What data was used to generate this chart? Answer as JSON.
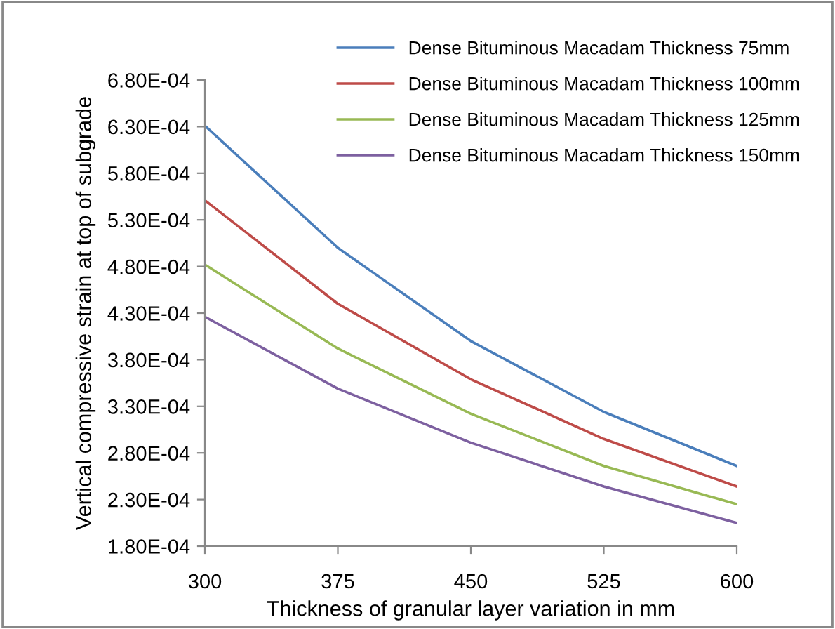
{
  "chart_data": {
    "type": "line",
    "xlabel": "Thickness of granular layer variation in mm",
    "ylabel": "Vertical compressive strain at top of subgrade",
    "x": [
      300,
      375,
      450,
      525,
      600
    ],
    "xlim": [
      300,
      600
    ],
    "xticks": [
      300,
      375,
      450,
      525,
      600
    ],
    "ylim": [
      0.00018,
      0.00068
    ],
    "yticks": [
      {
        "value": 0.00018,
        "label": "1.80E-04"
      },
      {
        "value": 0.00023,
        "label": "2.30E-04"
      },
      {
        "value": 0.00028,
        "label": "2.80E-04"
      },
      {
        "value": 0.00033,
        "label": "3.30E-04"
      },
      {
        "value": 0.00038,
        "label": "3.80E-04"
      },
      {
        "value": 0.00043,
        "label": "4.30E-04"
      },
      {
        "value": 0.00048,
        "label": "4.80E-04"
      },
      {
        "value": 0.00053,
        "label": "5.30E-04"
      },
      {
        "value": 0.00058,
        "label": "5.80E-04"
      },
      {
        "value": 0.00063,
        "label": "6.30E-04"
      },
      {
        "value": 0.00068,
        "label": "6.80E-04"
      }
    ],
    "grid": false,
    "legend": "top right",
    "marker": "none",
    "line_style": "solid",
    "series": [
      {
        "name": "Dense Bituminous Macadam Thickness 75mm",
        "color": "#4a7ebb",
        "values": [
          0.000631,
          0.0005,
          0.0004,
          0.000324,
          0.000266
        ]
      },
      {
        "name": "Dense Bituminous Macadam Thickness 100mm",
        "color": "#be4b48",
        "values": [
          0.000551,
          0.00044,
          0.000359,
          0.000295,
          0.000244
        ]
      },
      {
        "name": "Dense Bituminous Macadam Thickness 125mm",
        "color": "#98b954",
        "values": [
          0.000482,
          0.000392,
          0.000322,
          0.000266,
          0.000225
        ]
      },
      {
        "name": "Dense Bituminous Macadam Thickness 150mm",
        "color": "#7d60a0",
        "values": [
          0.000426,
          0.000349,
          0.000291,
          0.000244,
          0.000205
        ]
      }
    ]
  }
}
